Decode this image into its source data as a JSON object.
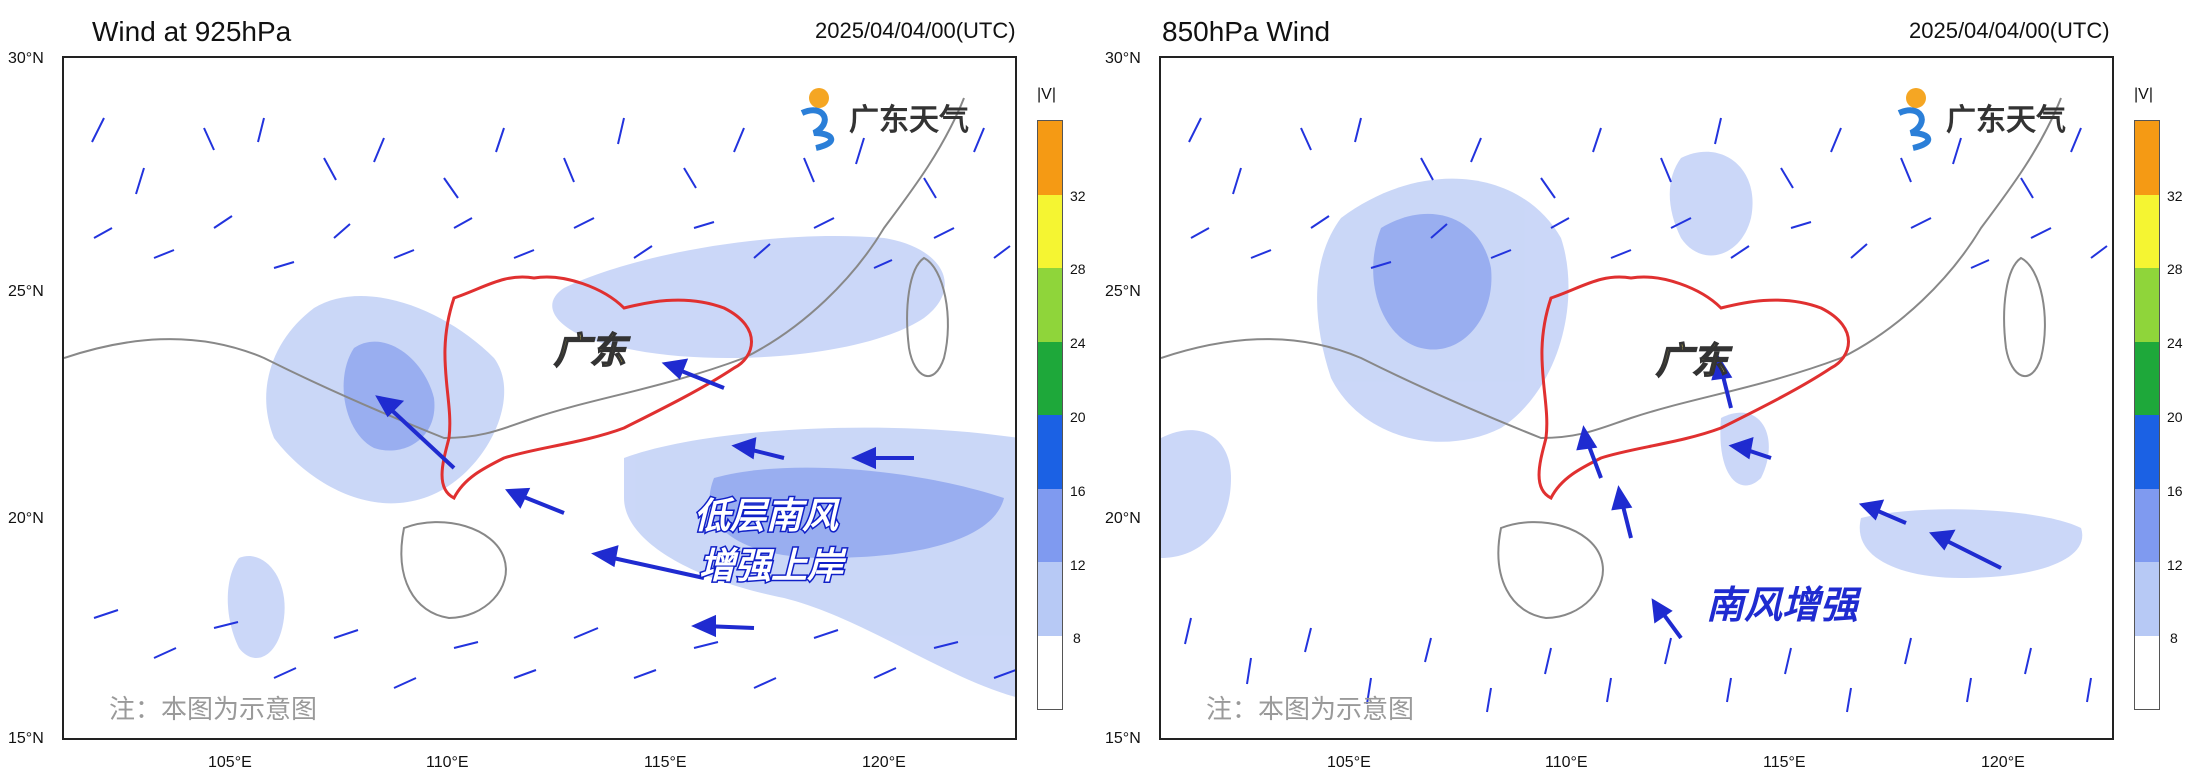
{
  "panels": [
    {
      "title": "Wind at 925hPa",
      "timestamp": "2025/04/04/00(UTC)",
      "y_ticks": [
        "30°N",
        "25°N",
        "20°N",
        "15°N"
      ],
      "x_ticks": [
        "105°E",
        "110°E",
        "115°E",
        "120°E"
      ],
      "logo_text": "广东天气",
      "region_label": "广东",
      "annotation_lines": [
        "低层南风",
        "增强上岸"
      ],
      "note": "注：本图为示意图"
    },
    {
      "title": "850hPa Wind",
      "timestamp": "2025/04/04/00(UTC)",
      "y_ticks": [
        "30°N",
        "25°N",
        "20°N",
        "15°N"
      ],
      "x_ticks": [
        "105°E",
        "110°E",
        "115°E",
        "120°E"
      ],
      "logo_text": "广东天气",
      "region_label": "广东",
      "annotation_lines": [
        "南风增强"
      ],
      "note": "注：本图为示意图"
    }
  ],
  "colorbar": {
    "unit_label": "|V|",
    "tick_labels": [
      "8",
      "12",
      "16",
      "20",
      "24",
      "28",
      "32"
    ],
    "colors": [
      "#ffffff",
      "#b7c9f5",
      "#7f9af0",
      "#1b61e4",
      "#1ea83a",
      "#8fd53a",
      "#f5f532",
      "#f59a14"
    ]
  },
  "colors": {
    "wind_barb": "#2233dd",
    "province_border": "#e03030",
    "arrow": "#1f2bd0",
    "shade_light": "#c5d3f7",
    "shade_mid": "#8fa6ef"
  }
}
